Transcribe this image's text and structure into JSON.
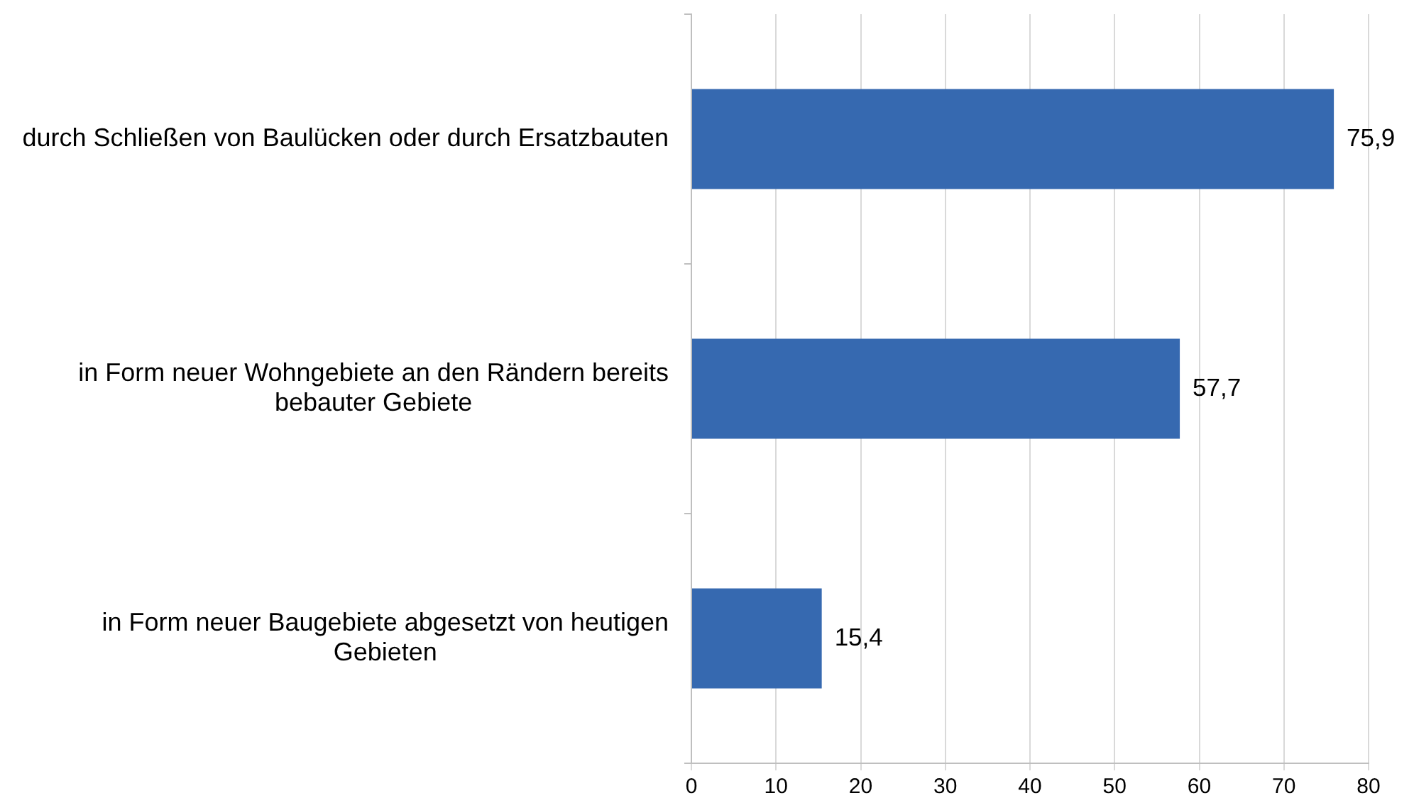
{
  "chart_data": {
    "type": "bar",
    "orientation": "horizontal",
    "categories": [
      "durch Schließen von Baulücken oder durch Ersatzbauten",
      "in Form neuer Wohngebiete an den Rändern bereits bebauter Gebiete",
      "in Form neuer Baugebiete abgesetzt von heutigen Gebieten"
    ],
    "values": [
      75.9,
      57.7,
      15.4
    ],
    "color": "#3669b0",
    "value_labels": [
      "75,9",
      "57,7",
      "15,4"
    ],
    "xlim": [
      0,
      80
    ],
    "xticks": [
      0,
      10,
      20,
      30,
      40,
      50,
      60,
      70,
      80
    ],
    "grid": "x"
  }
}
